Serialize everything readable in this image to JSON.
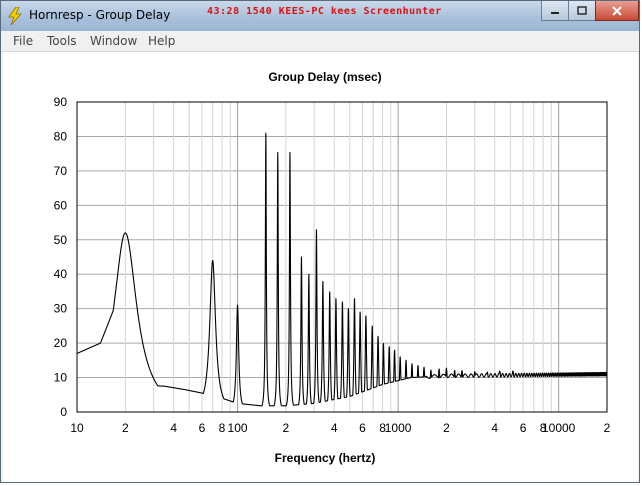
{
  "window": {
    "title": "Hornresp - Group Delay",
    "watermark": "43:28  1540  KEES-PC  kees  Screenhunter",
    "controls": [
      "minimize",
      "maximize",
      "close"
    ]
  },
  "menu": {
    "items": [
      "File",
      "Tools",
      "Window",
      "Help"
    ]
  },
  "chart_data": {
    "type": "line",
    "title": "Group Delay (msec)",
    "xlabel": "Frequency (hertz)",
    "ylabel": "",
    "xscale": "log",
    "xlim": [
      10,
      20000
    ],
    "ylim": [
      0,
      90
    ],
    "yticks": [
      0,
      10,
      20,
      30,
      40,
      50,
      60,
      70,
      80,
      90
    ],
    "xtick_labels": [
      {
        "v": 10,
        "t": "10"
      },
      {
        "v": 20,
        "t": "2"
      },
      {
        "v": 40,
        "t": "4"
      },
      {
        "v": 60,
        "t": "6"
      },
      {
        "v": 80,
        "t": "8"
      },
      {
        "v": 100,
        "t": "100"
      },
      {
        "v": 200,
        "t": "2"
      },
      {
        "v": 400,
        "t": "4"
      },
      {
        "v": 600,
        "t": "6"
      },
      {
        "v": 800,
        "t": "8"
      },
      {
        "v": 1000,
        "t": "1000"
      },
      {
        "v": 2000,
        "t": "2"
      },
      {
        "v": 4000,
        "t": "4"
      },
      {
        "v": 6000,
        "t": "6"
      },
      {
        "v": 8000,
        "t": "8"
      },
      {
        "v": 10000,
        "t": "10000"
      },
      {
        "v": 20000,
        "t": "2"
      }
    ],
    "grid": true,
    "series": [
      {
        "color": "#000000",
        "baseline_points": [
          [
            10,
            17
          ],
          [
            14,
            20
          ],
          [
            17,
            30
          ],
          [
            20,
            8
          ],
          [
            35,
            7.5
          ],
          [
            47,
            6.5
          ],
          [
            60,
            5.5
          ],
          [
            80,
            4
          ],
          [
            100,
            2.5
          ],
          [
            140,
            1.8
          ],
          [
            200,
            1.8
          ],
          [
            300,
            2.5
          ],
          [
            500,
            4.5
          ],
          [
            800,
            8
          ],
          [
            1200,
            10
          ],
          [
            2000,
            10.5
          ],
          [
            5000,
            10.7
          ],
          [
            20000,
            11
          ]
        ],
        "resonances": [
          {
            "f": 20,
            "h": 52,
            "q": 2.5
          },
          {
            "f": 70,
            "h": 44,
            "q": 10
          },
          {
            "f": 100,
            "h": 31,
            "q": 25
          },
          {
            "f": 150,
            "h": 81,
            "q": 60
          },
          {
            "f": 178,
            "h": 75.5,
            "q": 60
          },
          {
            "f": 212,
            "h": 75.5,
            "q": 60
          },
          {
            "f": 250,
            "h": 45,
            "q": 55
          },
          {
            "f": 278,
            "h": 40,
            "q": 55
          },
          {
            "f": 310,
            "h": 53,
            "q": 55
          },
          {
            "f": 340,
            "h": 38,
            "q": 50
          },
          {
            "f": 375,
            "h": 35,
            "q": 50
          },
          {
            "f": 410,
            "h": 33,
            "q": 50
          },
          {
            "f": 450,
            "h": 32,
            "q": 48
          },
          {
            "f": 490,
            "h": 30,
            "q": 48
          },
          {
            "f": 535,
            "h": 33,
            "q": 48
          },
          {
            "f": 580,
            "h": 29,
            "q": 45
          },
          {
            "f": 630,
            "h": 28,
            "q": 45
          },
          {
            "f": 690,
            "h": 25,
            "q": 45
          },
          {
            "f": 750,
            "h": 22,
            "q": 42
          },
          {
            "f": 810,
            "h": 20,
            "q": 42
          },
          {
            "f": 880,
            "h": 19,
            "q": 40
          },
          {
            "f": 950,
            "h": 18,
            "q": 40
          },
          {
            "f": 1030,
            "h": 16,
            "q": 38
          },
          {
            "f": 1120,
            "h": 15,
            "q": 36
          },
          {
            "f": 1220,
            "h": 14,
            "q": 34
          },
          {
            "f": 1330,
            "h": 13.5,
            "q": 32
          },
          {
            "f": 1450,
            "h": 13,
            "q": 30
          },
          {
            "f": 1600,
            "h": 12.5,
            "q": 28
          },
          {
            "f": 1800,
            "h": 13,
            "q": 26
          },
          {
            "f": 2000,
            "h": 13,
            "q": 25
          },
          {
            "f": 2250,
            "h": 12.5,
            "q": 24
          },
          {
            "f": 2500,
            "h": 12.5,
            "q": 22
          },
          {
            "f": 3000,
            "h": 12,
            "q": 20
          },
          {
            "f": 3600,
            "h": 11.5,
            "q": 18
          },
          {
            "f": 4300,
            "h": 11.8,
            "q": 16
          },
          {
            "f": 5200,
            "h": 11.5,
            "q": 15
          }
        ]
      }
    ]
  }
}
